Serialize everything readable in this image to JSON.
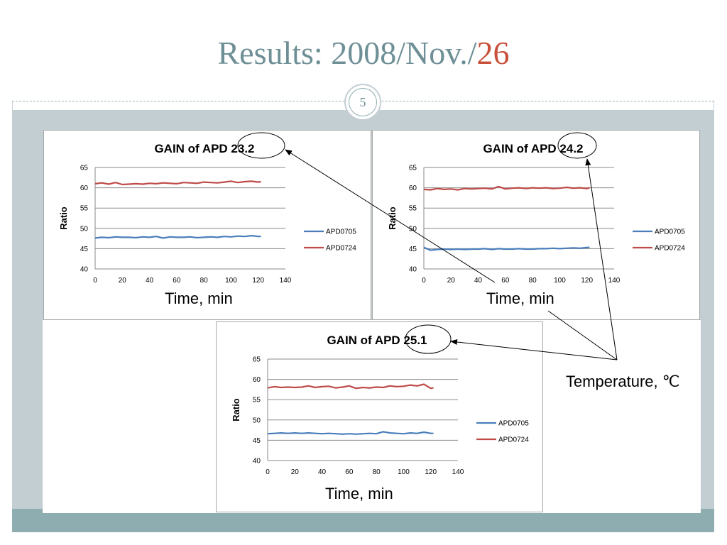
{
  "slide": {
    "title_prefix": "Results: 2008/Nov./",
    "title_accent": "26",
    "page_number": "5",
    "temperature_label": "Temperature, ℃",
    "colors": {
      "accent": "#c8503a",
      "title": "#6e8f96",
      "band": "#c3ced3",
      "footer": "#8eadb0"
    }
  },
  "chart_data": [
    {
      "type": "line",
      "title": "GAIN of APD 23.2",
      "xlabel": "Time, min",
      "ylabel": "Ratio",
      "xlim": [
        0,
        140
      ],
      "ylim": [
        40,
        65
      ],
      "xticks": [
        0,
        20,
        40,
        60,
        80,
        100,
        120,
        140
      ],
      "yticks": [
        40,
        45,
        50,
        55,
        60,
        65
      ],
      "grid": "horizontal",
      "legend": "right",
      "series": [
        {
          "name": "APD0705",
          "color": "#4a7ebb",
          "x": [
            0,
            5,
            10,
            15,
            20,
            25,
            30,
            35,
            40,
            45,
            50,
            55,
            60,
            65,
            70,
            75,
            80,
            85,
            90,
            95,
            100,
            105,
            110,
            115,
            120,
            122
          ],
          "y": [
            47.6,
            47.8,
            47.7,
            47.9,
            47.8,
            47.8,
            47.7,
            47.9,
            47.8,
            48.0,
            47.6,
            47.9,
            47.8,
            47.8,
            47.9,
            47.7,
            47.8,
            47.9,
            47.8,
            48.0,
            47.9,
            48.1,
            48.0,
            48.2,
            48.0,
            48.0
          ]
        },
        {
          "name": "APD0724",
          "color": "#be4b48",
          "x": [
            0,
            5,
            10,
            15,
            20,
            25,
            30,
            35,
            40,
            45,
            50,
            55,
            60,
            65,
            70,
            75,
            80,
            85,
            90,
            95,
            100,
            105,
            110,
            115,
            120,
            122
          ],
          "y": [
            61.0,
            61.2,
            60.9,
            61.3,
            60.8,
            60.9,
            61.0,
            60.9,
            61.1,
            61.0,
            61.2,
            61.1,
            61.0,
            61.3,
            61.2,
            61.1,
            61.4,
            61.3,
            61.2,
            61.4,
            61.6,
            61.3,
            61.5,
            61.6,
            61.4,
            61.5
          ]
        }
      ]
    },
    {
      "type": "line",
      "title": "GAIN of APD 24.2",
      "xlabel": "Time, min",
      "ylabel": "Ratio",
      "xlim": [
        0,
        140
      ],
      "ylim": [
        40,
        65
      ],
      "xticks": [
        0,
        20,
        40,
        60,
        80,
        100,
        120,
        140
      ],
      "yticks": [
        40,
        45,
        50,
        55,
        60,
        65
      ],
      "grid": "horizontal",
      "legend": "right",
      "series": [
        {
          "name": "APD0705",
          "color": "#4a7ebb",
          "x": [
            0,
            5,
            10,
            15,
            20,
            25,
            30,
            35,
            40,
            45,
            50,
            55,
            60,
            65,
            70,
            75,
            80,
            85,
            90,
            95,
            100,
            105,
            110,
            115,
            120,
            122
          ],
          "y": [
            45.3,
            44.6,
            44.8,
            44.9,
            44.8,
            44.9,
            44.8,
            44.9,
            44.9,
            45.0,
            44.8,
            45.0,
            44.9,
            44.9,
            45.0,
            44.9,
            44.9,
            45.0,
            45.0,
            45.1,
            45.0,
            45.1,
            45.2,
            45.1,
            45.3,
            45.3
          ]
        },
        {
          "name": "APD0724",
          "color": "#be4b48",
          "x": [
            0,
            5,
            10,
            15,
            20,
            25,
            30,
            35,
            40,
            45,
            50,
            55,
            60,
            65,
            70,
            75,
            80,
            85,
            90,
            95,
            100,
            105,
            110,
            115,
            120,
            122
          ],
          "y": [
            59.6,
            59.5,
            59.8,
            59.6,
            59.7,
            59.5,
            59.8,
            59.7,
            59.8,
            59.9,
            59.7,
            60.3,
            59.7,
            59.9,
            60.0,
            59.8,
            60.0,
            59.9,
            60.0,
            59.8,
            59.9,
            60.1,
            59.9,
            60.0,
            59.8,
            60.0
          ]
        }
      ]
    },
    {
      "type": "line",
      "title": "GAIN of APD 25.1",
      "xlabel": "Time, min",
      "ylabel": "Ratio",
      "xlim": [
        0,
        140
      ],
      "ylim": [
        40,
        65
      ],
      "xticks": [
        0,
        20,
        40,
        60,
        80,
        100,
        120,
        140
      ],
      "yticks": [
        40,
        45,
        50,
        55,
        60,
        65
      ],
      "grid": "horizontal",
      "legend": "right",
      "series": [
        {
          "name": "APD0705",
          "color": "#4a7ebb",
          "x": [
            0,
            5,
            10,
            15,
            20,
            25,
            30,
            35,
            40,
            45,
            50,
            55,
            60,
            65,
            70,
            75,
            80,
            85,
            90,
            95,
            100,
            105,
            110,
            115,
            120,
            122
          ],
          "y": [
            46.6,
            46.7,
            46.8,
            46.7,
            46.8,
            46.7,
            46.8,
            46.7,
            46.6,
            46.7,
            46.6,
            46.5,
            46.6,
            46.5,
            46.6,
            46.7,
            46.6,
            47.1,
            46.8,
            46.7,
            46.6,
            46.8,
            46.7,
            47.0,
            46.7,
            46.7
          ]
        },
        {
          "name": "APD0724",
          "color": "#be4b48",
          "x": [
            0,
            5,
            10,
            15,
            20,
            25,
            30,
            35,
            40,
            45,
            50,
            55,
            60,
            65,
            70,
            75,
            80,
            85,
            90,
            95,
            100,
            105,
            110,
            115,
            120,
            122
          ],
          "y": [
            57.9,
            58.2,
            58.0,
            58.1,
            58.0,
            58.1,
            58.4,
            58.0,
            58.2,
            58.3,
            57.9,
            58.1,
            58.4,
            57.8,
            58.0,
            57.9,
            58.1,
            58.0,
            58.4,
            58.2,
            58.3,
            58.6,
            58.4,
            58.8,
            57.8,
            57.9
          ]
        }
      ]
    }
  ]
}
